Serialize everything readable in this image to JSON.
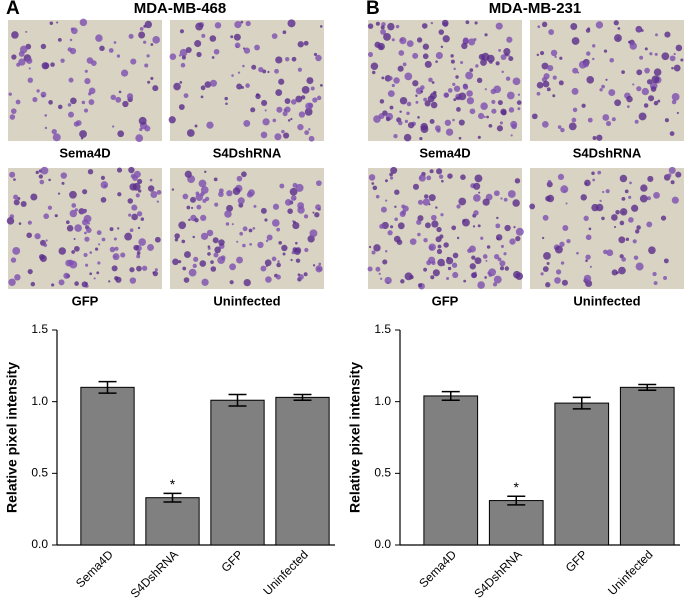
{
  "panels": [
    {
      "label": "A",
      "title": "MDA-MB-468",
      "images": [
        "Sema4D",
        "S4DshRNA",
        "GFP",
        "Uninfected"
      ]
    },
    {
      "label": "B",
      "title": "MDA-MB-231",
      "images": [
        "Sema4D",
        "S4DshRNA",
        "GFP",
        "Uninfected"
      ]
    }
  ],
  "chart_data": [
    {
      "type": "bar",
      "y_label": "Relative pixel intensity",
      "categories": [
        "Sema4D",
        "S4DshRNA",
        "GFP",
        "Uninfected"
      ],
      "values": [
        1.1,
        0.33,
        1.01,
        1.03
      ],
      "errors": [
        0.04,
        0.03,
        0.04,
        0.02
      ],
      "annotations": [
        null,
        "*",
        null,
        null
      ],
      "color": "#808080",
      "ylim": [
        0,
        1.5
      ],
      "yticks": [
        {
          "value": 0,
          "label": "0.0"
        },
        {
          "value": 0.5,
          "label": "0.5"
        },
        {
          "value": 1,
          "label": "1.0"
        },
        {
          "value": 1.5,
          "label": "1.5"
        }
      ]
    },
    {
      "type": "bar",
      "y_label": "Relative pixel intensity",
      "categories": [
        "Sema4D",
        "S4DshRNA",
        "GFP",
        "Uninfected"
      ],
      "values": [
        1.04,
        0.31,
        0.99,
        1.1
      ],
      "errors": [
        0.03,
        0.03,
        0.04,
        0.02
      ],
      "annotations": [
        null,
        "*",
        null,
        null
      ],
      "color": "#808080",
      "ylim": [
        0,
        1.5
      ],
      "yticks": [
        {
          "value": 0,
          "label": "0.0"
        },
        {
          "value": 0.5,
          "label": "0.5"
        },
        {
          "value": 1,
          "label": "1.0"
        },
        {
          "value": 1.5,
          "label": "1.5"
        }
      ]
    }
  ]
}
